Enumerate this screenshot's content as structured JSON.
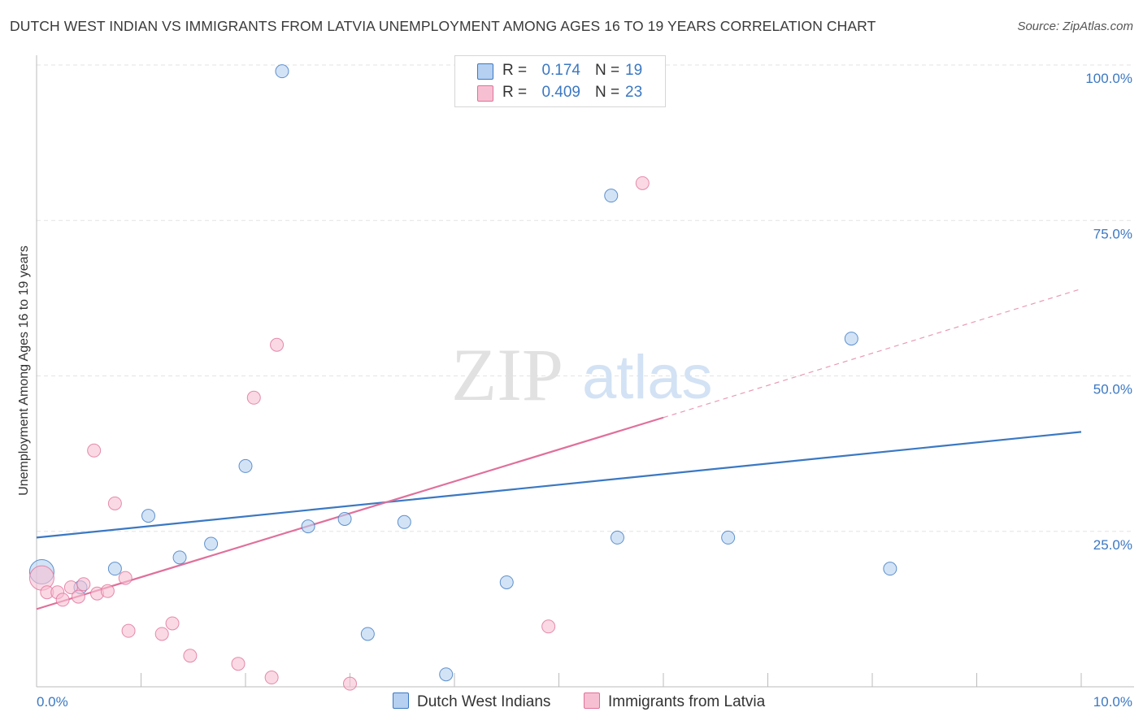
{
  "chart_data": {
    "type": "scatter",
    "title": "DUTCH WEST INDIAN VS IMMIGRANTS FROM LATVIA UNEMPLOYMENT AMONG AGES 16 TO 19 YEARS CORRELATION CHART",
    "source": "Source: ZipAtlas.com",
    "xlabel": "",
    "ylabel": "Unemployment Among Ages 16 to 19 years",
    "xlim": [
      0,
      10
    ],
    "ylim": [
      0,
      100
    ],
    "x_tick_labels": {
      "left": "0.0%",
      "right": "10.0%"
    },
    "y_ticks": [
      {
        "value": 100,
        "label": "100.0%"
      },
      {
        "value": 75,
        "label": "75.0%"
      },
      {
        "value": 50,
        "label": "50.0%"
      },
      {
        "value": 25,
        "label": "25.0%"
      }
    ],
    "watermark": {
      "zip": "ZIP",
      "atlas": "atlas"
    },
    "series": [
      {
        "name": "Dutch West Indians",
        "color": "#3b78c2",
        "fill": "#b5d0f0",
        "r_label": "R =",
        "r_value": "0.174",
        "n_label": "N =",
        "n_value": "19",
        "points": [
          {
            "x": 0.05,
            "y": 18.5,
            "size": "large"
          },
          {
            "x": 0.42,
            "y": 16.0
          },
          {
            "x": 0.75,
            "y": 19.0
          },
          {
            "x": 1.07,
            "y": 27.5
          },
          {
            "x": 1.37,
            "y": 20.8
          },
          {
            "x": 1.67,
            "y": 23.0
          },
          {
            "x": 2.0,
            "y": 35.5
          },
          {
            "x": 2.35,
            "y": 99.0
          },
          {
            "x": 2.6,
            "y": 25.8
          },
          {
            "x": 2.95,
            "y": 27.0
          },
          {
            "x": 3.17,
            "y": 8.5
          },
          {
            "x": 3.52,
            "y": 26.5
          },
          {
            "x": 3.92,
            "y": 2.0
          },
          {
            "x": 4.5,
            "y": 16.8
          },
          {
            "x": 5.5,
            "y": 79.0
          },
          {
            "x": 5.56,
            "y": 24.0
          },
          {
            "x": 6.62,
            "y": 24.0
          },
          {
            "x": 7.8,
            "y": 56.0
          },
          {
            "x": 8.17,
            "y": 19.0
          }
        ],
        "trend": {
          "x0": 0,
          "y0": 24.0,
          "x1": 10,
          "y1": 41.0
        }
      },
      {
        "name": "Immigrants from Latvia",
        "color": "#e0709a",
        "fill": "#f7c0d2",
        "r_label": "R =",
        "r_value": "0.409",
        "n_label": "N =",
        "n_value": "23",
        "points": [
          {
            "x": 0.05,
            "y": 17.5,
            "size": "large"
          },
          {
            "x": 0.1,
            "y": 15.2
          },
          {
            "x": 0.2,
            "y": 15.2
          },
          {
            "x": 0.25,
            "y": 14.0
          },
          {
            "x": 0.33,
            "y": 16.0
          },
          {
            "x": 0.4,
            "y": 14.5
          },
          {
            "x": 0.45,
            "y": 16.5
          },
          {
            "x": 0.55,
            "y": 38.0
          },
          {
            "x": 0.58,
            "y": 15.0
          },
          {
            "x": 0.68,
            "y": 15.4
          },
          {
            "x": 0.75,
            "y": 29.5
          },
          {
            "x": 0.85,
            "y": 17.5
          },
          {
            "x": 0.88,
            "y": 9.0
          },
          {
            "x": 1.2,
            "y": 8.5
          },
          {
            "x": 1.3,
            "y": 10.2
          },
          {
            "x": 1.47,
            "y": 5.0
          },
          {
            "x": 1.93,
            "y": 3.7
          },
          {
            "x": 2.08,
            "y": 46.5
          },
          {
            "x": 2.25,
            "y": 1.5
          },
          {
            "x": 2.3,
            "y": 55.0
          },
          {
            "x": 3.0,
            "y": 0.5
          },
          {
            "x": 4.9,
            "y": 9.7
          },
          {
            "x": 5.8,
            "y": 81.0
          }
        ],
        "trend": {
          "x0": 0,
          "y0": 12.5,
          "x1": 6.0,
          "y1": 43.3
        },
        "trend_extension": {
          "x0": 6.0,
          "y0": 43.3,
          "x1": 10.0,
          "y1": 64.0
        }
      }
    ]
  }
}
